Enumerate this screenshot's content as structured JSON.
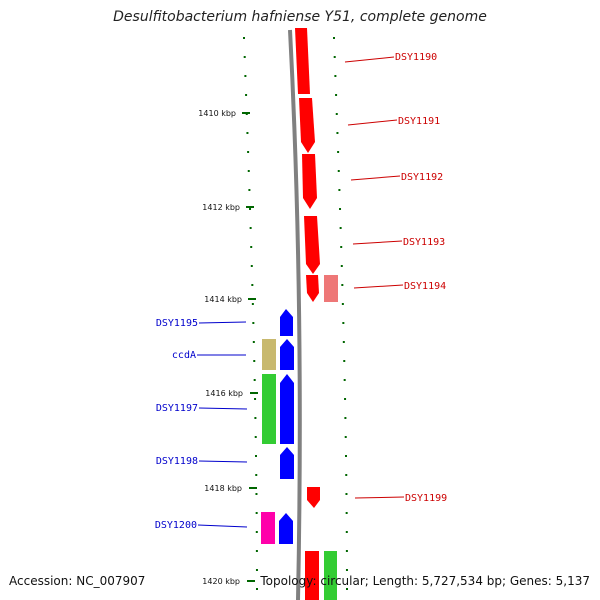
{
  "title": "Desulfitobacterium hafniense Y51, complete genome",
  "accession": "Accession: NC_007907",
  "topology": "Topology: circular; Length: 5,727,534 bp; Genes: 5,137",
  "colors": {
    "backbone": "#808080",
    "tick": "#006600",
    "forward_gene": "#ff0000",
    "reverse_gene": "#0000ff",
    "cog_green": "#33cc33",
    "cog_olive": "#c8b96e",
    "cog_pink": "#ff00aa",
    "cog_light_red": "#ee7777",
    "label_forward": "#cc0000",
    "label_reverse": "#0000cc"
  },
  "scale_labels": [
    "1410 kbp",
    "1412 kbp",
    "1414 kbp",
    "1416 kbp",
    "1418 kbp",
    "1420 kbp"
  ],
  "genes_forward": [
    {
      "name": "DSY1190"
    },
    {
      "name": "DSY1191"
    },
    {
      "name": "DSY1192"
    },
    {
      "name": "DSY1193"
    },
    {
      "name": "DSY1194"
    },
    {
      "name": "DSY1199"
    }
  ],
  "genes_reverse": [
    {
      "name": "DSY1195"
    },
    {
      "name": "ccdA"
    },
    {
      "name": "DSY1197"
    },
    {
      "name": "DSY1198"
    },
    {
      "name": "DSY1200"
    }
  ]
}
